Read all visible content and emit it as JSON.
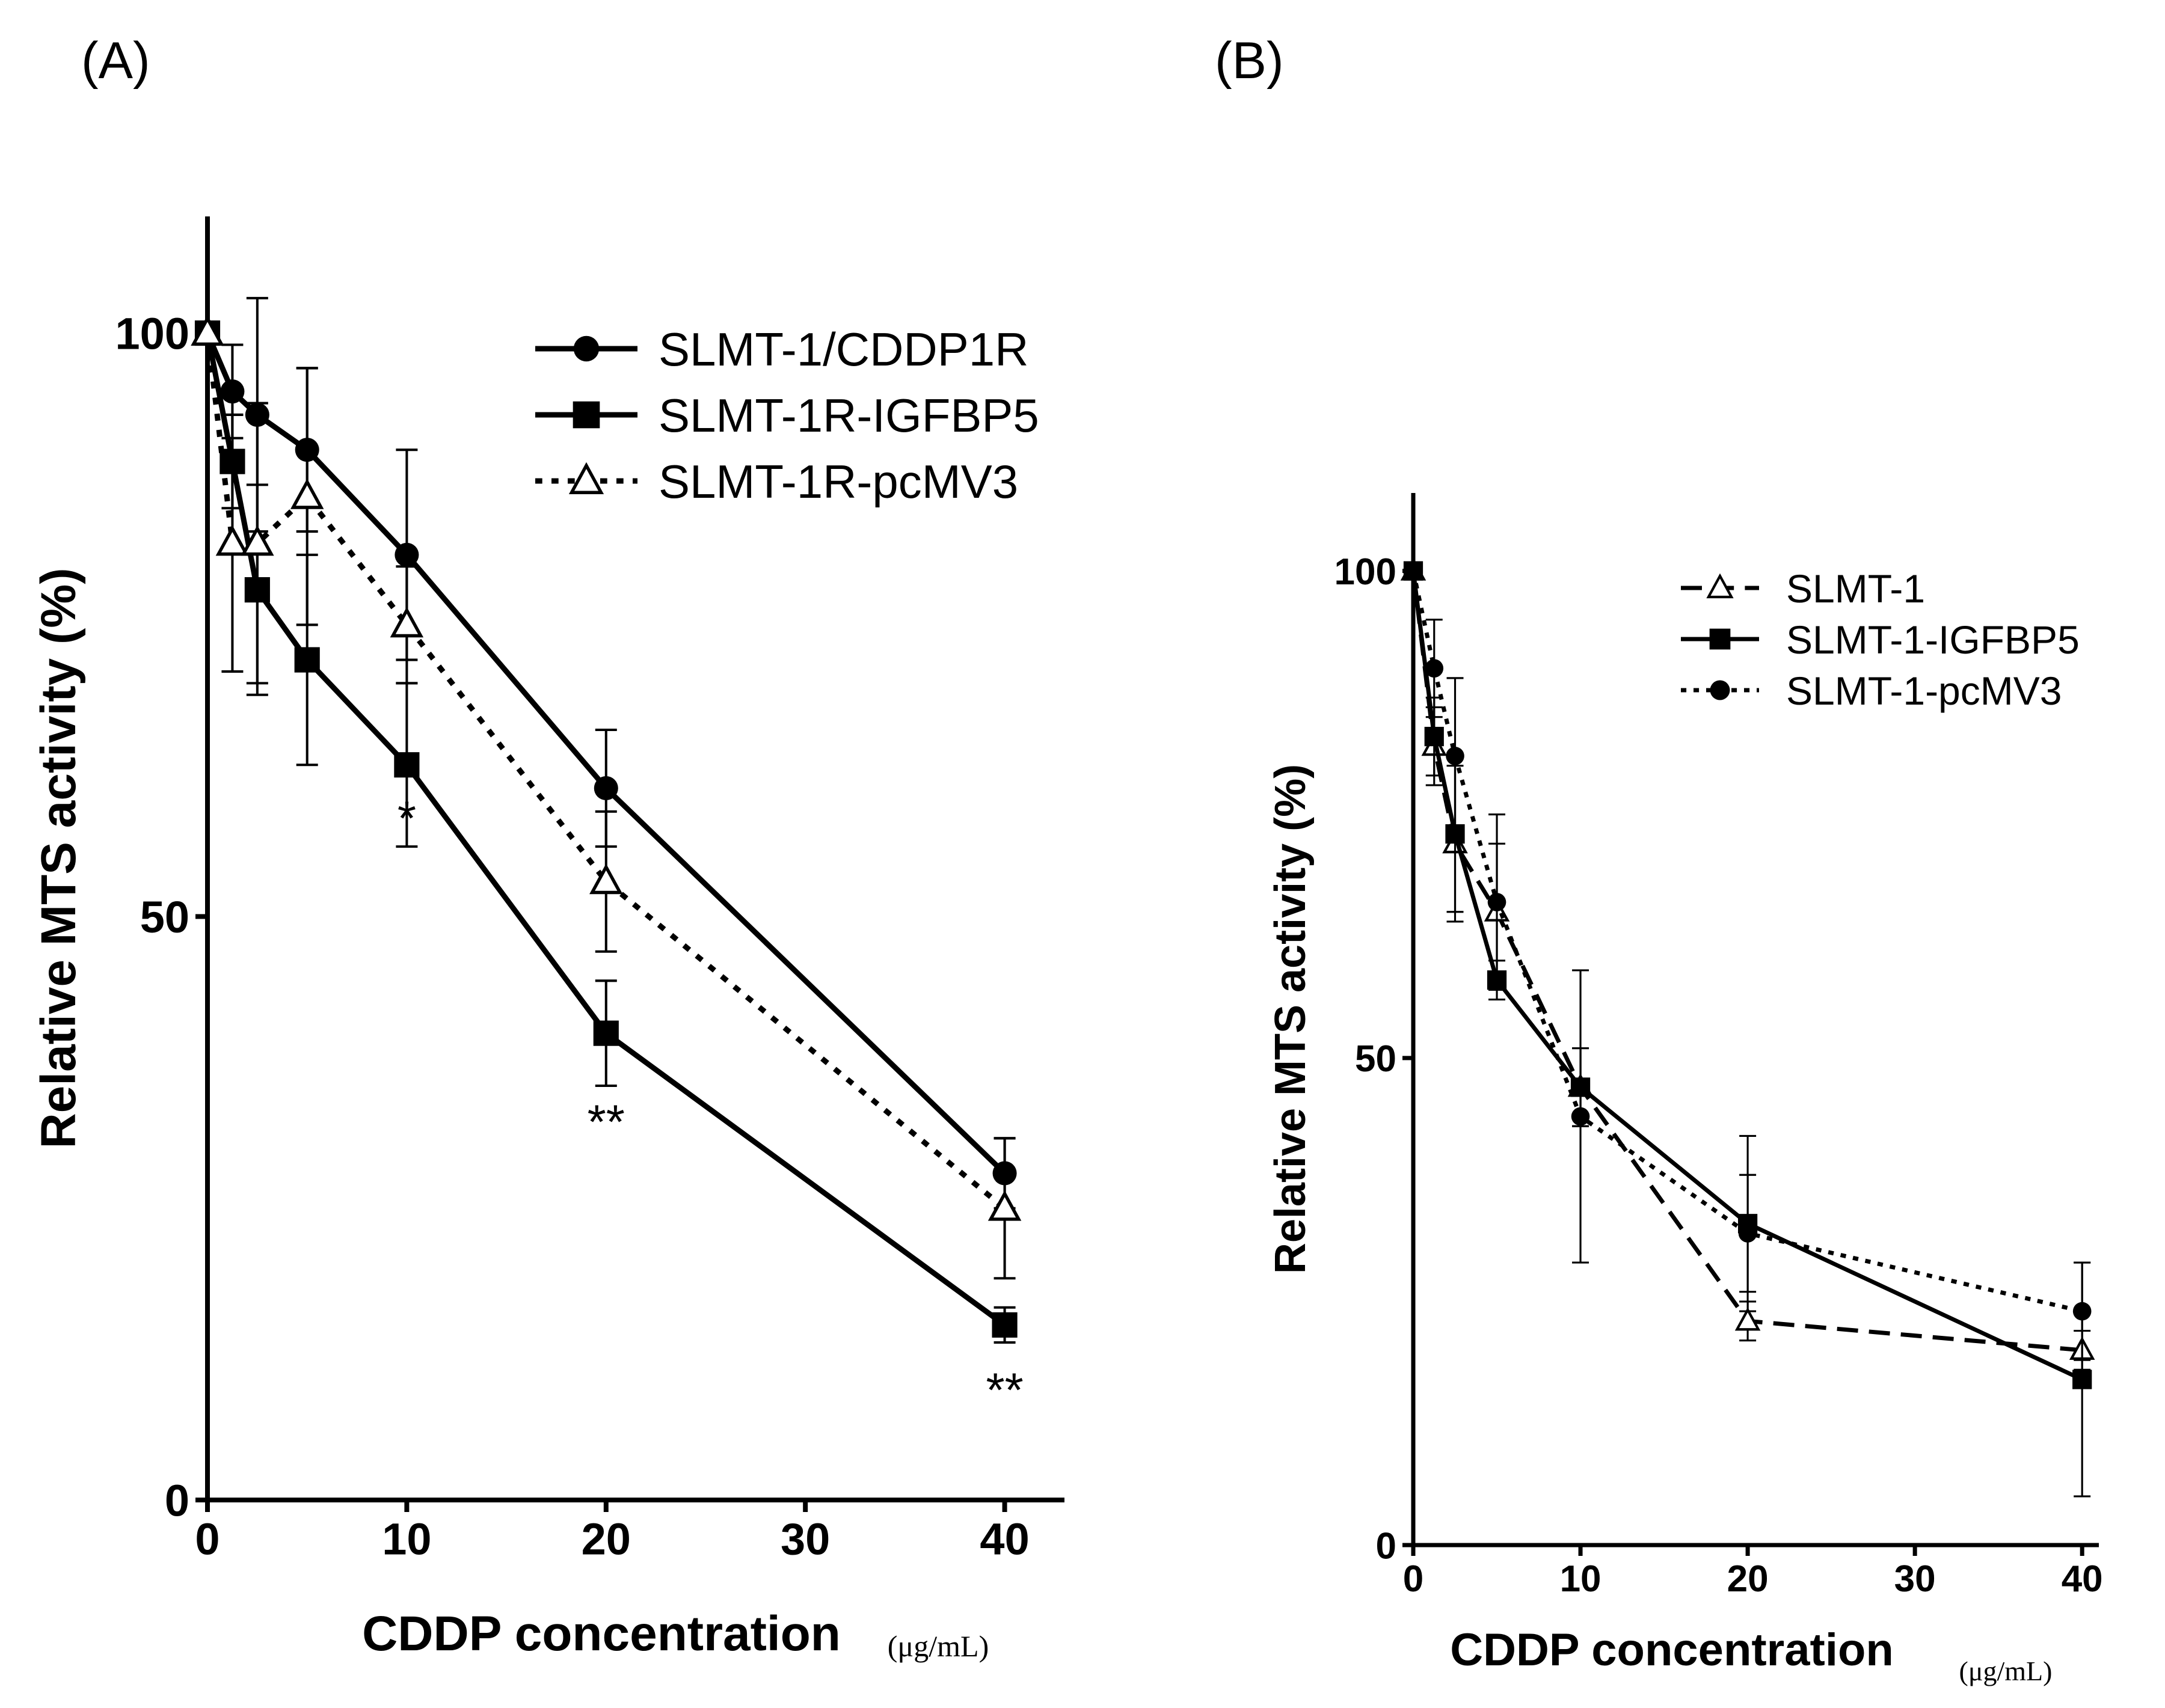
{
  "chart_data": [
    {
      "panel": "(A)",
      "type": "line",
      "xlabel": "CDDP concentration",
      "xunit": "(μg/mL)",
      "ylabel": "Relative MTS activity (%)",
      "xlim": [
        0,
        43
      ],
      "ylim": [
        0,
        110
      ],
      "xticks": [
        0,
        10,
        20,
        30,
        40
      ],
      "yticks": [
        0,
        50,
        100
      ],
      "series": [
        {
          "name": "SLMT-1/CDDP1R",
          "marker": "circle",
          "line": "solid",
          "x": [
            0,
            1.25,
            2.5,
            5,
            10,
            20,
            40
          ],
          "y": [
            100,
            95,
            93,
            90,
            81,
            61,
            28
          ],
          "err": [
            0,
            4,
            10,
            7,
            9,
            5,
            3
          ]
        },
        {
          "name": "SLMT-1R-IGFBP5",
          "marker": "square",
          "line": "solid",
          "x": [
            0,
            1.25,
            2.5,
            5,
            10,
            20,
            40
          ],
          "y": [
            100,
            89,
            78,
            72,
            63,
            40,
            15
          ],
          "err": [
            0,
            4,
            9,
            9,
            7,
            4.5,
            1.5
          ]
        },
        {
          "name": "SLMT-1R-pcMV3",
          "marker": "triangle",
          "line": "dotted",
          "x": [
            0,
            1.25,
            2.5,
            5,
            10,
            20,
            40
          ],
          "y": [
            100,
            82,
            82,
            86,
            75,
            53,
            25
          ],
          "err": [
            0,
            11,
            12,
            11,
            5,
            6,
            6
          ]
        }
      ],
      "annotations": [
        {
          "x": 10,
          "y": 57,
          "text": "*"
        },
        {
          "x": 20,
          "y": 31,
          "text": "**"
        },
        {
          "x": 40,
          "y": 8,
          "text": "**"
        }
      ]
    },
    {
      "panel": "(B)",
      "type": "line",
      "xlabel": "CDDP concentration",
      "xunit": "(μg/mL)",
      "ylabel": "Relative MTS activity (%)",
      "xlim": [
        0,
        41
      ],
      "ylim": [
        0,
        108
      ],
      "xticks": [
        0,
        10,
        20,
        30,
        40
      ],
      "yticks": [
        0,
        50,
        100
      ],
      "series": [
        {
          "name": "SLMT-1",
          "marker": "triangle",
          "line": "dashed",
          "x": [
            0,
            1.25,
            2.5,
            5,
            10,
            20,
            40
          ],
          "y": [
            100,
            82,
            72,
            65,
            47,
            23,
            20
          ],
          "err": [
            0,
            4,
            8,
            7,
            4,
            2,
            2
          ]
        },
        {
          "name": "SLMT-1-IGFBP5",
          "marker": "square",
          "line": "solid",
          "x": [
            0,
            1.25,
            2.5,
            5,
            10,
            20,
            40
          ],
          "y": [
            100,
            83,
            73,
            58,
            47,
            33,
            17
          ],
          "err": [
            0,
            4,
            8,
            2,
            4,
            9,
            12
          ]
        },
        {
          "name": "SLMT-1-pcMV3",
          "marker": "circle",
          "line": "dotted",
          "x": [
            0,
            1.25,
            2.5,
            5,
            10,
            20,
            40
          ],
          "y": [
            100,
            90,
            81,
            66,
            44,
            32,
            24
          ],
          "err": [
            0,
            5,
            8,
            9,
            15,
            6,
            5
          ]
        }
      ]
    }
  ]
}
